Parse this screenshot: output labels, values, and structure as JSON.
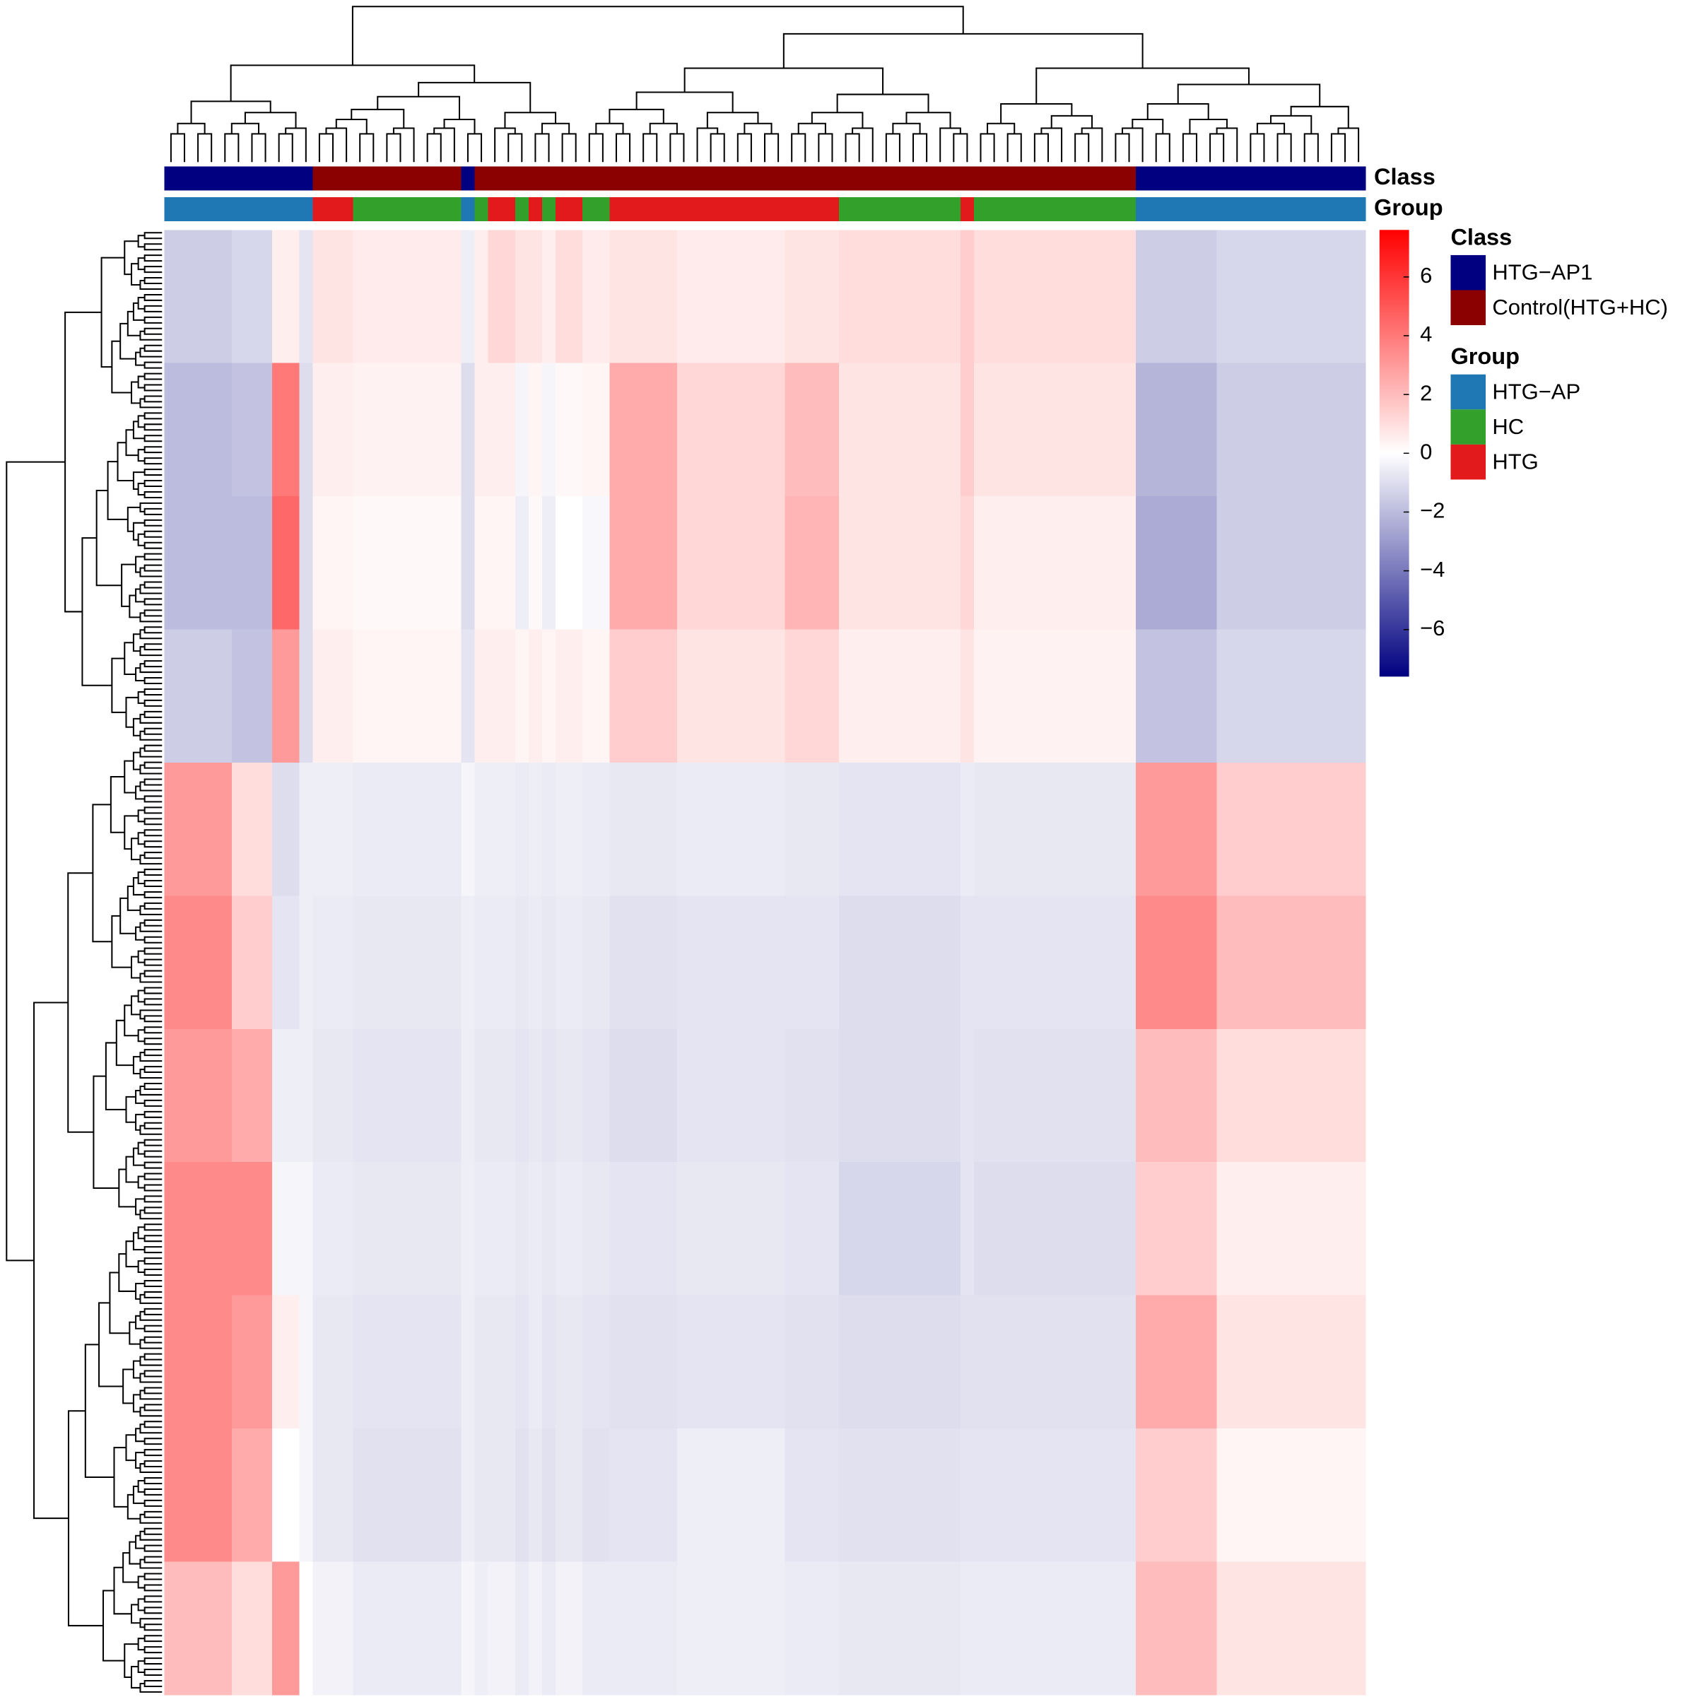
{
  "chart_data": {
    "type": "heatmap",
    "annotation_tracks": [
      "Class",
      "Group"
    ],
    "legend": [
      {
        "title": "Class",
        "entries": [
          {
            "name": "HTG−AP1",
            "color": "#000080"
          },
          {
            "name": "Control(HTG+HC)",
            "color": "#8b0000"
          }
        ]
      },
      {
        "title": "Group",
        "entries": [
          {
            "name": "HTG−AP",
            "color": "#1f78b4"
          },
          {
            "name": "HC",
            "color": "#33a02c"
          },
          {
            "name": "HTG",
            "color": "#e31a1c"
          }
        ]
      }
    ],
    "columns": [
      {
        "class": 0,
        "group": 0,
        "samples": 5
      },
      {
        "class": 0,
        "group": 0,
        "samples": 3
      },
      {
        "class": 0,
        "group": 0,
        "samples": 2
      },
      {
        "class": 0,
        "group": 0,
        "samples": 1
      },
      {
        "class": 1,
        "group": 2,
        "samples": 3
      },
      {
        "class": 1,
        "group": 1,
        "samples": 8
      },
      {
        "class": 0,
        "group": 0,
        "samples": 1
      },
      {
        "class": 1,
        "group": 1,
        "samples": 1
      },
      {
        "class": 1,
        "group": 2,
        "samples": 2
      },
      {
        "class": 1,
        "group": 1,
        "samples": 1
      },
      {
        "class": 1,
        "group": 2,
        "samples": 1
      },
      {
        "class": 1,
        "group": 1,
        "samples": 1
      },
      {
        "class": 1,
        "group": 2,
        "samples": 2
      },
      {
        "class": 1,
        "group": 1,
        "samples": 2
      },
      {
        "class": 1,
        "group": 2,
        "samples": 5
      },
      {
        "class": 1,
        "group": 2,
        "samples": 8
      },
      {
        "class": 1,
        "group": 2,
        "samples": 4
      },
      {
        "class": 1,
        "group": 1,
        "samples": 9
      },
      {
        "class": 1,
        "group": 2,
        "samples": 1
      },
      {
        "class": 1,
        "group": 1,
        "samples": 12
      },
      {
        "class": 0,
        "group": 0,
        "samples": 6
      },
      {
        "class": 0,
        "group": 0,
        "samples": 11
      }
    ],
    "values": [
      [
        -1.5,
        -1.2,
        0.5,
        -0.8,
        0.8,
        0.6,
        -0.5,
        0.5,
        1.2,
        0.8,
        0.8,
        0.5,
        1,
        0.6,
        0.8,
        0.6,
        0.8,
        1,
        1.5,
        1,
        -1.5,
        -1.2
      ],
      [
        -2,
        -1.8,
        4,
        -1,
        0.5,
        0.4,
        -1,
        0.5,
        0.5,
        -0.3,
        0.3,
        -0.3,
        0.2,
        0.3,
        2.5,
        1.2,
        2,
        0.8,
        1.5,
        0.8,
        -2.2,
        -1.5
      ],
      [
        -2,
        -2,
        4.5,
        -1,
        0.3,
        0.2,
        -1,
        0.3,
        0.3,
        -0.5,
        0.2,
        -0.5,
        0,
        -0.2,
        2.5,
        1.2,
        2.2,
        0.8,
        1.2,
        0.5,
        -2.5,
        -1.5
      ],
      [
        -1.5,
        -1.8,
        3,
        -1,
        0.5,
        0.3,
        -0.8,
        0.5,
        0.5,
        0.3,
        0.5,
        0.3,
        0.5,
        0.3,
        1.5,
        0.8,
        1.2,
        0.5,
        0.8,
        0.4,
        -1.8,
        -1.2
      ],
      [
        3,
        1,
        -1,
        -0.5,
        -0.5,
        -0.6,
        -0.3,
        -0.5,
        -0.5,
        -0.6,
        -0.5,
        -0.6,
        -0.5,
        -0.6,
        -0.7,
        -0.6,
        -0.7,
        -0.8,
        -0.6,
        -0.7,
        3,
        1.5
      ],
      [
        3.5,
        1.5,
        -0.8,
        -0.5,
        -0.6,
        -0.7,
        -0.5,
        -0.6,
        -0.6,
        -0.7,
        -0.6,
        -0.7,
        -0.6,
        -0.7,
        -0.9,
        -0.8,
        -0.8,
        -1,
        -0.8,
        -0.8,
        3.5,
        2
      ],
      [
        3,
        2.5,
        -0.5,
        -0.5,
        -0.7,
        -0.8,
        -0.5,
        -0.7,
        -0.7,
        -0.8,
        -0.7,
        -0.8,
        -0.7,
        -0.8,
        -1,
        -0.8,
        -0.9,
        -1,
        -0.8,
        -0.9,
        2,
        1
      ],
      [
        3.5,
        3.5,
        -0.3,
        -0.3,
        -0.6,
        -0.7,
        -0.5,
        -0.6,
        -0.6,
        -0.7,
        -0.6,
        -0.7,
        -0.6,
        -0.7,
        -0.8,
        -0.7,
        -0.8,
        -1.2,
        -0.8,
        -1,
        1.5,
        0.5
      ],
      [
        3.5,
        3,
        0.5,
        -0.3,
        -0.7,
        -0.8,
        -0.5,
        -0.7,
        -0.7,
        -0.8,
        -0.6,
        -0.8,
        -0.7,
        -0.8,
        -0.9,
        -0.8,
        -0.9,
        -1,
        -0.9,
        -0.9,
        2.5,
        0.8
      ],
      [
        3.5,
        2.5,
        0,
        -0.3,
        -0.7,
        -0.9,
        -0.5,
        -0.7,
        -0.7,
        -0.9,
        -0.7,
        -0.9,
        -0.7,
        -0.9,
        -0.8,
        -0.5,
        -0.8,
        -0.9,
        -0.8,
        -0.8,
        1.5,
        0.3
      ],
      [
        2,
        1,
        3,
        0,
        -0.4,
        -0.6,
        -0.3,
        -0.5,
        -0.4,
        -0.6,
        -0.4,
        -0.6,
        -0.4,
        -0.6,
        -0.6,
        -0.5,
        -0.6,
        -0.7,
        -0.6,
        -0.6,
        2,
        0.8
      ]
    ],
    "zlim": [
      -7.6,
      7.6
    ],
    "zticks": [
      {
        "value": -6,
        "label": "−6"
      },
      {
        "value": -4,
        "label": "−4"
      },
      {
        "value": -2,
        "label": "−2"
      },
      0,
      2,
      4,
      6
    ],
    "colors": {
      "low": "#000080",
      "mid": "#ffffff",
      "high": "#ff0000"
    }
  }
}
